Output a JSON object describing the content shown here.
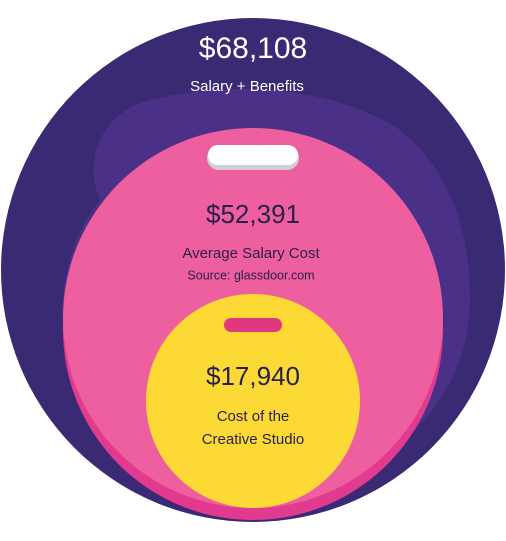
{
  "circles": [
    {
      "amount": "$68,108",
      "label": "Salary + Benefits"
    },
    {
      "amount": "$52,391",
      "label": "Average Salary Cost",
      "source": "Source: glassdoor.com"
    },
    {
      "amount": "$17,940",
      "label_lines": [
        "Cost of the",
        "Creative Studio"
      ]
    }
  ]
}
